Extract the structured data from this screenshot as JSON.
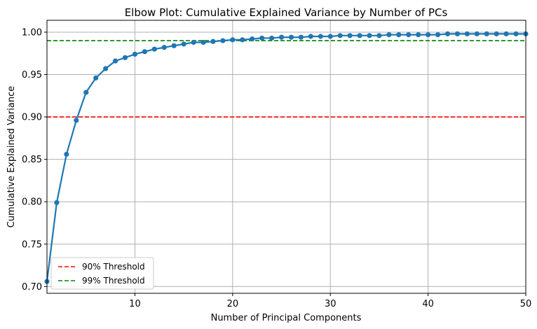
{
  "chart_data": {
    "type": "line",
    "title": "Elbow Plot: Cumulative Explained Variance by Number of PCs",
    "xlabel": "Number of Principal Components",
    "ylabel": "Cumulative Explained Variance",
    "xlim": [
      1,
      50
    ],
    "ylim": [
      0.692,
      1.014
    ],
    "xticks": [
      10,
      20,
      30,
      40,
      50
    ],
    "yticks": [
      0.7,
      0.75,
      0.8,
      0.85,
      0.9,
      0.95,
      1.0
    ],
    "xtick_labels": [
      "10",
      "20",
      "30",
      "40",
      "50"
    ],
    "ytick_labels": [
      "0.70",
      "0.75",
      "0.80",
      "0.85",
      "0.90",
      "0.95",
      "1.00"
    ],
    "grid": true,
    "legend_position": "lower-left",
    "series": [
      {
        "color": "#1f77b4",
        "x": [
          1,
          2,
          3,
          4,
          5,
          6,
          7,
          8,
          9,
          10,
          11,
          12,
          13,
          14,
          15,
          16,
          17,
          18,
          19,
          20,
          21,
          22,
          23,
          24,
          25,
          26,
          27,
          28,
          29,
          30,
          31,
          32,
          33,
          34,
          35,
          36,
          37,
          38,
          39,
          40,
          41,
          42,
          43,
          44,
          45,
          46,
          47,
          48,
          49,
          50
        ],
        "y": [
          0.706,
          0.799,
          0.856,
          0.896,
          0.929,
          0.946,
          0.957,
          0.966,
          0.97,
          0.974,
          0.977,
          0.98,
          0.982,
          0.984,
          0.986,
          0.988,
          0.988,
          0.989,
          0.99,
          0.991,
          0.991,
          0.992,
          0.993,
          0.993,
          0.994,
          0.994,
          0.994,
          0.995,
          0.995,
          0.995,
          0.996,
          0.996,
          0.996,
          0.996,
          0.996,
          0.997,
          0.997,
          0.997,
          0.997,
          0.997,
          0.997,
          0.998,
          0.998,
          0.998,
          0.998,
          0.998,
          0.998,
          0.998,
          0.998,
          0.998
        ]
      }
    ],
    "thresholds": [
      {
        "name": "90% Threshold",
        "value": 0.9,
        "color": "#ff0000"
      },
      {
        "name": "99% Threshold",
        "value": 0.99,
        "color": "#008000"
      }
    ]
  }
}
